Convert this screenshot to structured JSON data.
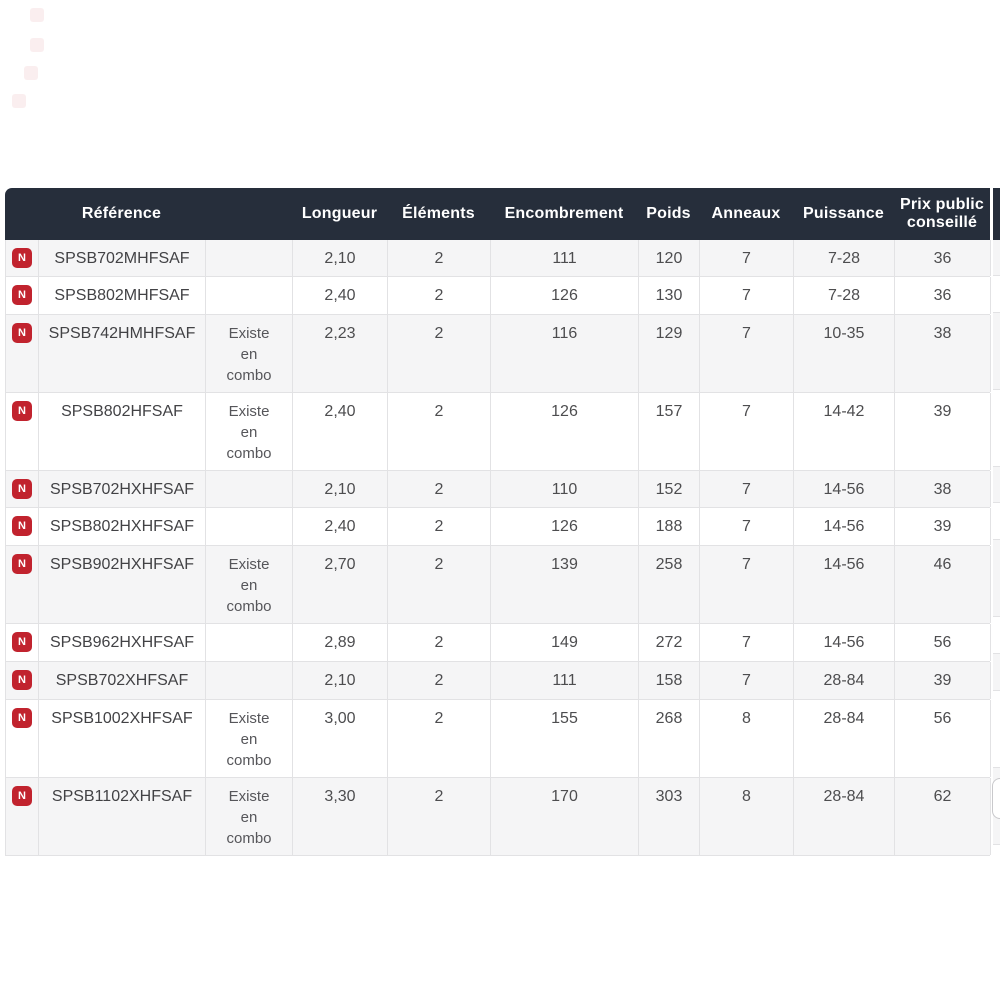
{
  "colors": {
    "header_bg": "#262e3b",
    "header_text": "#ffffff",
    "row_alt_bg": "#f5f5f6",
    "row_bg": "#ffffff",
    "border": "#e2e2e4",
    "cell_text": "#4d4d4f",
    "badge_bg": "#c1232e",
    "badge_text": "#ffffff"
  },
  "table": {
    "new_badge_label": "N",
    "combo_note": "Existe\nen\ncombo",
    "columns": [
      {
        "key": "badge",
        "label": ""
      },
      {
        "key": "reference",
        "label": "Référence"
      },
      {
        "key": "combo",
        "label": ""
      },
      {
        "key": "longueur",
        "label": "Longueur"
      },
      {
        "key": "elements",
        "label": "Éléments"
      },
      {
        "key": "encombrement",
        "label": "Encombrement"
      },
      {
        "key": "poids",
        "label": "Poids"
      },
      {
        "key": "anneaux",
        "label": "Anneaux"
      },
      {
        "key": "puissance",
        "label": "Puissance"
      },
      {
        "key": "prix",
        "label": "Prix public conseillé"
      }
    ],
    "rows": [
      {
        "is_new": true,
        "reference": "SPSB702MHFSAF",
        "has_combo": false,
        "longueur": "2,10",
        "elements": "2",
        "encombrement": "111",
        "poids": "120",
        "anneaux": "7",
        "puissance": "7-28",
        "prix": "36"
      },
      {
        "is_new": true,
        "reference": "SPSB802MHFSAF",
        "has_combo": false,
        "longueur": "2,40",
        "elements": "2",
        "encombrement": "126",
        "poids": "130",
        "anneaux": "7",
        "puissance": "7-28",
        "prix": "36"
      },
      {
        "is_new": true,
        "reference": "SPSB742HMHFSAF",
        "has_combo": true,
        "longueur": "2,23",
        "elements": "2",
        "encombrement": "116",
        "poids": "129",
        "anneaux": "7",
        "puissance": "10-35",
        "prix": "38"
      },
      {
        "is_new": true,
        "reference": "SPSB802HFSAF",
        "has_combo": true,
        "longueur": "2,40",
        "elements": "2",
        "encombrement": "126",
        "poids": "157",
        "anneaux": "7",
        "puissance": "14-42",
        "prix": "39"
      },
      {
        "is_new": true,
        "reference": "SPSB702HXHFSAF",
        "has_combo": false,
        "longueur": "2,10",
        "elements": "2",
        "encombrement": "110",
        "poids": "152",
        "anneaux": "7",
        "puissance": "14-56",
        "prix": "38"
      },
      {
        "is_new": true,
        "reference": "SPSB802HXHFSAF",
        "has_combo": false,
        "longueur": "2,40",
        "elements": "2",
        "encombrement": "126",
        "poids": "188",
        "anneaux": "7",
        "puissance": "14-56",
        "prix": "39"
      },
      {
        "is_new": true,
        "reference": "SPSB902HXHFSAF",
        "has_combo": true,
        "longueur": "2,70",
        "elements": "2",
        "encombrement": "139",
        "poids": "258",
        "anneaux": "7",
        "puissance": "14-56",
        "prix": "46"
      },
      {
        "is_new": true,
        "reference": "SPSB962HXHFSAF",
        "has_combo": false,
        "longueur": "2,89",
        "elements": "2",
        "encombrement": "149",
        "poids": "272",
        "anneaux": "7",
        "puissance": "14-56",
        "prix": "56"
      },
      {
        "is_new": true,
        "reference": "SPSB702XHFSAF",
        "has_combo": false,
        "longueur": "2,10",
        "elements": "2",
        "encombrement": "111",
        "poids": "158",
        "anneaux": "7",
        "puissance": "28-84",
        "prix": "39"
      },
      {
        "is_new": true,
        "reference": "SPSB1002XHFSAF",
        "has_combo": true,
        "longueur": "3,00",
        "elements": "2",
        "encombrement": "155",
        "poids": "268",
        "anneaux": "8",
        "puissance": "28-84",
        "prix": "56"
      },
      {
        "is_new": true,
        "reference": "SPSB1102XHFSAF",
        "has_combo": true,
        "longueur": "3,30",
        "elements": "2",
        "encombrement": "170",
        "poids": "303",
        "anneaux": "8",
        "puissance": "28-84",
        "prix": "62"
      }
    ]
  }
}
